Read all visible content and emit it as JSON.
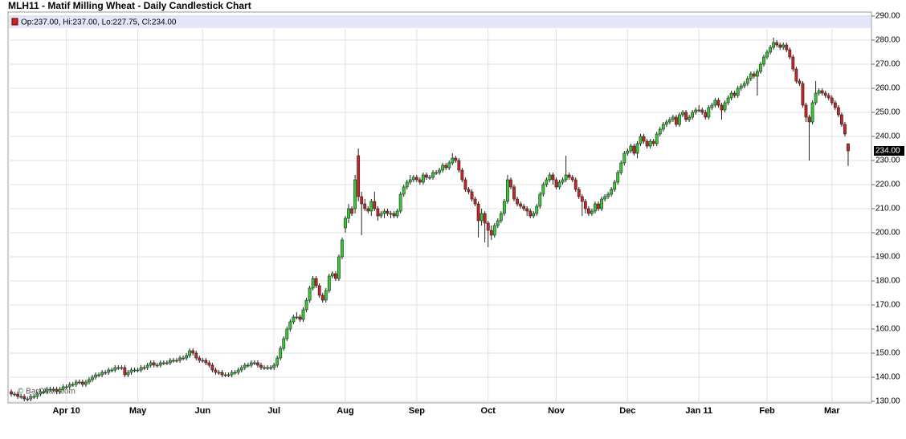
{
  "chart_data": {
    "type": "candlestick",
    "title": "MLH11 - Matif Milling Wheat - Daily Candlestick Chart",
    "legend": "Op:237.00, Hi:237.00, Lo:227.75, Cl:234.00",
    "watermark": "© BarChart.com",
    "last_label": {
      "value": 234,
      "label": "234.00"
    },
    "up_color": "#33cc33",
    "down_color": "#cc2222",
    "grid": true,
    "ylim": [
      130,
      290
    ],
    "yticks": [
      {
        "value": 130,
        "label": "130.00"
      },
      {
        "value": 140,
        "label": "140.00"
      },
      {
        "value": 150,
        "label": "150.00"
      },
      {
        "value": 160,
        "label": "160.00"
      },
      {
        "value": 170,
        "label": "170.00"
      },
      {
        "value": 180,
        "label": "180.00"
      },
      {
        "value": 190,
        "label": "190.00"
      },
      {
        "value": 200,
        "label": "200.00"
      },
      {
        "value": 210,
        "label": "210.00"
      },
      {
        "value": 220,
        "label": "220.00"
      },
      {
        "value": 230,
        "label": "230.00"
      },
      {
        "value": 240,
        "label": "240.00"
      },
      {
        "value": 250,
        "label": "250.00"
      },
      {
        "value": 260,
        "label": "260.00"
      },
      {
        "value": 270,
        "label": "270.00"
      },
      {
        "value": 280,
        "label": "280.00"
      },
      {
        "value": 290,
        "label": "290.00"
      }
    ],
    "categories": [
      null,
      null,
      null,
      null,
      null,
      null,
      null,
      null,
      null,
      null,
      null,
      null,
      null,
      null,
      null,
      null,
      null,
      "Apr 10",
      null,
      null,
      null,
      null,
      null,
      null,
      null,
      null,
      null,
      null,
      null,
      null,
      null,
      null,
      null,
      null,
      null,
      null,
      null,
      null,
      null,
      "May",
      null,
      null,
      null,
      null,
      null,
      null,
      null,
      null,
      null,
      null,
      null,
      null,
      null,
      null,
      null,
      null,
      null,
      null,
      null,
      "Jun",
      null,
      null,
      null,
      null,
      null,
      null,
      null,
      null,
      null,
      null,
      null,
      null,
      null,
      null,
      null,
      null,
      null,
      null,
      null,
      null,
      null,
      "Jul",
      null,
      null,
      null,
      null,
      null,
      null,
      null,
      null,
      null,
      null,
      null,
      null,
      null,
      null,
      null,
      null,
      null,
      null,
      null,
      null,
      null,
      "Aug",
      null,
      null,
      null,
      null,
      null,
      null,
      null,
      null,
      null,
      null,
      null,
      null,
      null,
      null,
      null,
      null,
      null,
      null,
      null,
      null,
      null,
      "Sep",
      null,
      null,
      null,
      null,
      null,
      null,
      null,
      null,
      null,
      null,
      null,
      null,
      null,
      null,
      null,
      null,
      null,
      null,
      null,
      null,
      null,
      "Oct",
      null,
      null,
      null,
      null,
      null,
      null,
      null,
      null,
      null,
      null,
      null,
      null,
      null,
      null,
      null,
      null,
      null,
      null,
      null,
      null,
      "Nov",
      null,
      null,
      null,
      null,
      null,
      null,
      null,
      null,
      null,
      null,
      null,
      null,
      null,
      null,
      null,
      null,
      null,
      null,
      null,
      null,
      null,
      "Dec",
      null,
      null,
      null,
      null,
      null,
      null,
      null,
      null,
      null,
      null,
      null,
      null,
      null,
      null,
      null,
      null,
      null,
      null,
      null,
      null,
      null,
      "Jan 11",
      null,
      null,
      null,
      null,
      null,
      null,
      null,
      null,
      null,
      null,
      null,
      null,
      null,
      null,
      null,
      null,
      null,
      null,
      null,
      null,
      "Feb",
      null,
      null,
      null,
      null,
      null,
      null,
      null,
      null,
      null,
      null,
      null,
      null,
      null,
      null,
      null,
      null,
      null,
      null,
      null,
      "Mar",
      null,
      null,
      null,
      null,
      null
    ],
    "open": [
      134,
      133,
      133,
      132,
      132,
      131,
      131,
      132,
      132,
      133,
      134,
      134,
      135,
      135,
      135,
      134,
      135,
      136,
      136,
      137,
      137,
      138,
      138,
      137,
      138,
      139,
      140,
      141,
      141,
      142,
      142,
      143,
      143,
      144,
      144,
      144,
      141,
      142,
      143,
      143,
      143,
      144,
      144,
      145,
      146,
      145,
      145,
      146,
      146,
      146,
      147,
      147,
      147,
      148,
      148,
      149,
      151,
      150,
      148,
      147,
      147,
      146,
      145,
      143,
      142,
      142,
      141,
      141,
      141,
      142,
      142,
      143,
      144,
      145,
      145,
      146,
      146,
      145,
      144,
      144,
      144,
      144,
      145,
      148,
      152,
      156,
      160,
      163,
      165,
      165,
      164,
      168,
      172,
      177,
      181,
      178,
      174,
      172,
      176,
      182,
      183,
      181,
      190,
      202,
      206,
      210,
      210,
      232,
      215,
      212,
      210,
      209,
      213,
      210,
      207,
      208,
      209,
      208,
      208,
      207,
      209,
      216,
      219,
      221,
      222,
      223,
      222,
      221,
      224,
      223,
      223,
      225,
      225,
      226,
      228,
      227,
      229,
      231,
      230,
      226,
      222,
      218,
      217,
      214,
      212,
      205,
      208,
      204,
      201,
      199,
      203,
      205,
      208,
      213,
      222,
      219,
      214,
      212,
      211,
      210,
      209,
      207,
      208,
      211,
      216,
      220,
      222,
      224,
      222,
      219,
      221,
      222,
      224,
      223,
      222,
      218,
      215,
      213,
      210,
      208,
      209,
      212,
      210,
      214,
      215,
      216,
      218,
      221,
      225,
      229,
      233,
      234,
      236,
      233,
      237,
      240,
      238,
      236,
      238,
      237,
      241,
      243,
      245,
      246,
      247,
      248,
      245,
      249,
      250,
      247,
      248,
      250,
      251,
      251,
      250,
      248,
      252,
      253,
      255,
      253,
      251,
      254,
      256,
      258,
      257,
      260,
      261,
      262,
      264,
      266,
      265,
      267,
      270,
      273,
      275,
      277,
      279,
      278,
      277,
      278,
      276,
      273,
      268,
      263,
      262,
      253,
      248,
      246,
      254,
      258,
      259,
      258,
      257,
      256,
      254,
      252,
      249,
      245,
      237
    ],
    "high": [
      135,
      134,
      134,
      133,
      133,
      132,
      133,
      133,
      134,
      135,
      135,
      136,
      136,
      136,
      136,
      136,
      137,
      137,
      138,
      138,
      139,
      139,
      139,
      139,
      140,
      141,
      142,
      142,
      143,
      143,
      144,
      144,
      145,
      145,
      145,
      145,
      143,
      144,
      144,
      144,
      145,
      145,
      146,
      147,
      147,
      146,
      147,
      147,
      147,
      148,
      148,
      148,
      149,
      149,
      150,
      152,
      152,
      151,
      149,
      148,
      148,
      147,
      146,
      144,
      143,
      143,
      142,
      142,
      143,
      143,
      144,
      145,
      146,
      146,
      147,
      147,
      147,
      146,
      145,
      145,
      145,
      146,
      149,
      153,
      157,
      161,
      164,
      166,
      167,
      166,
      169,
      173,
      178,
      182,
      182,
      179,
      175,
      177,
      183,
      184,
      184,
      191,
      198,
      207,
      212,
      211,
      224,
      235,
      217,
      214,
      211,
      214,
      217,
      211,
      209,
      210,
      210,
      209,
      209,
      210,
      217,
      220,
      222,
      224,
      224,
      224,
      223,
      225,
      225,
      224,
      226,
      226,
      227,
      229,
      229,
      230,
      233,
      232,
      231,
      227,
      223,
      219,
      218,
      215,
      213,
      210,
      209,
      205,
      203,
      204,
      206,
      209,
      214,
      224,
      223,
      220,
      215,
      213,
      212,
      211,
      210,
      209,
      212,
      217,
      221,
      223,
      225,
      225,
      223,
      222,
      223,
      232,
      225,
      224,
      223,
      219,
      216,
      214,
      211,
      210,
      213,
      213,
      215,
      216,
      217,
      219,
      222,
      226,
      230,
      234,
      235,
      237,
      237,
      238,
      241,
      241,
      239,
      239,
      239,
      242,
      244,
      246,
      247,
      248,
      249,
      249,
      250,
      251,
      251,
      249,
      251,
      252,
      253,
      252,
      251,
      253,
      254,
      256,
      256,
      254,
      255,
      257,
      259,
      259,
      261,
      262,
      263,
      265,
      267,
      267,
      268,
      271,
      274,
      276,
      278,
      281,
      280,
      279,
      279,
      279,
      277,
      274,
      269,
      264,
      263,
      254,
      249,
      255,
      263,
      260,
      260,
      259,
      258,
      257,
      255,
      253,
      250,
      246,
      237
    ],
    "low": [
      132,
      132,
      131,
      131,
      130,
      130,
      130,
      131,
      131,
      132,
      133,
      133,
      134,
      134,
      133,
      133,
      134,
      135,
      135,
      136,
      136,
      137,
      136,
      136,
      137,
      138,
      139,
      140,
      140,
      141,
      141,
      142,
      142,
      143,
      143,
      140,
      140,
      141,
      142,
      142,
      142,
      143,
      143,
      144,
      144,
      144,
      144,
      145,
      145,
      145,
      146,
      146,
      146,
      147,
      147,
      148,
      149,
      147,
      146,
      146,
      145,
      144,
      142,
      141,
      141,
      140,
      140,
      140,
      140,
      141,
      141,
      142,
      143,
      144,
      144,
      145,
      144,
      143,
      143,
      143,
      143,
      143,
      144,
      147,
      151,
      155,
      159,
      162,
      164,
      163,
      163,
      167,
      171,
      176,
      177,
      173,
      171,
      171,
      175,
      181,
      180,
      180,
      189,
      200,
      204,
      207,
      208,
      213,
      199,
      209,
      208,
      207,
      209,
      205,
      206,
      206,
      207,
      206,
      206,
      206,
      208,
      215,
      218,
      220,
      221,
      221,
      220,
      220,
      222,
      222,
      222,
      224,
      224,
      225,
      226,
      226,
      228,
      229,
      225,
      221,
      217,
      216,
      213,
      211,
      198,
      203,
      196,
      194,
      197,
      198,
      202,
      204,
      207,
      212,
      218,
      213,
      211,
      210,
      209,
      207,
      206,
      206,
      207,
      210,
      215,
      219,
      221,
      220,
      218,
      218,
      220,
      221,
      222,
      221,
      217,
      214,
      207,
      208,
      207,
      207,
      208,
      209,
      209,
      213,
      214,
      215,
      217,
      220,
      224,
      228,
      232,
      233,
      232,
      231,
      236,
      237,
      235,
      235,
      236,
      236,
      240,
      242,
      244,
      245,
      246,
      244,
      244,
      248,
      246,
      246,
      247,
      249,
      250,
      249,
      247,
      247,
      251,
      252,
      252,
      247,
      250,
      253,
      255,
      256,
      256,
      259,
      260,
      261,
      263,
      264,
      257,
      266,
      269,
      272,
      274,
      276,
      277,
      276,
      276,
      275,
      272,
      267,
      262,
      261,
      252,
      246,
      230,
      245,
      253,
      257,
      257,
      256,
      255,
      253,
      251,
      248,
      244,
      240,
      227.75
    ],
    "close": [
      133,
      133,
      132,
      132,
      131,
      131,
      132,
      132,
      133,
      134,
      134,
      135,
      135,
      135,
      134,
      135,
      136,
      136,
      137,
      137,
      138,
      138,
      137,
      138,
      139,
      140,
      141,
      141,
      142,
      142,
      143,
      143,
      144,
      144,
      144,
      141,
      142,
      143,
      143,
      143,
      144,
      144,
      145,
      146,
      145,
      145,
      146,
      146,
      146,
      147,
      147,
      147,
      148,
      148,
      149,
      151,
      150,
      148,
      147,
      147,
      146,
      145,
      143,
      142,
      142,
      141,
      141,
      141,
      142,
      142,
      143,
      144,
      145,
      145,
      146,
      146,
      145,
      144,
      144,
      144,
      144,
      145,
      148,
      152,
      156,
      160,
      163,
      165,
      165,
      164,
      168,
      172,
      177,
      181,
      178,
      174,
      172,
      176,
      182,
      183,
      181,
      190,
      197,
      206,
      210,
      208,
      222,
      215,
      212,
      210,
      209,
      213,
      210,
      207,
      208,
      209,
      208,
      208,
      207,
      209,
      216,
      219,
      221,
      222,
      223,
      222,
      221,
      224,
      223,
      223,
      225,
      225,
      226,
      228,
      227,
      229,
      231,
      230,
      226,
      222,
      218,
      217,
      214,
      212,
      205,
      208,
      204,
      201,
      199,
      203,
      205,
      208,
      213,
      222,
      219,
      214,
      212,
      211,
      210,
      209,
      207,
      208,
      211,
      216,
      220,
      222,
      224,
      222,
      219,
      221,
      222,
      224,
      223,
      222,
      218,
      215,
      213,
      210,
      208,
      209,
      212,
      210,
      214,
      215,
      216,
      218,
      221,
      225,
      229,
      233,
      234,
      236,
      233,
      237,
      240,
      238,
      236,
      238,
      237,
      241,
      243,
      245,
      246,
      247,
      248,
      245,
      249,
      250,
      247,
      248,
      250,
      251,
      251,
      250,
      248,
      252,
      253,
      255,
      253,
      251,
      254,
      256,
      258,
      257,
      260,
      261,
      262,
      264,
      266,
      265,
      267,
      270,
      273,
      275,
      277,
      279,
      278,
      277,
      278,
      276,
      273,
      268,
      263,
      262,
      253,
      248,
      246,
      254,
      258,
      259,
      258,
      257,
      256,
      254,
      252,
      249,
      245,
      241,
      234
    ]
  }
}
